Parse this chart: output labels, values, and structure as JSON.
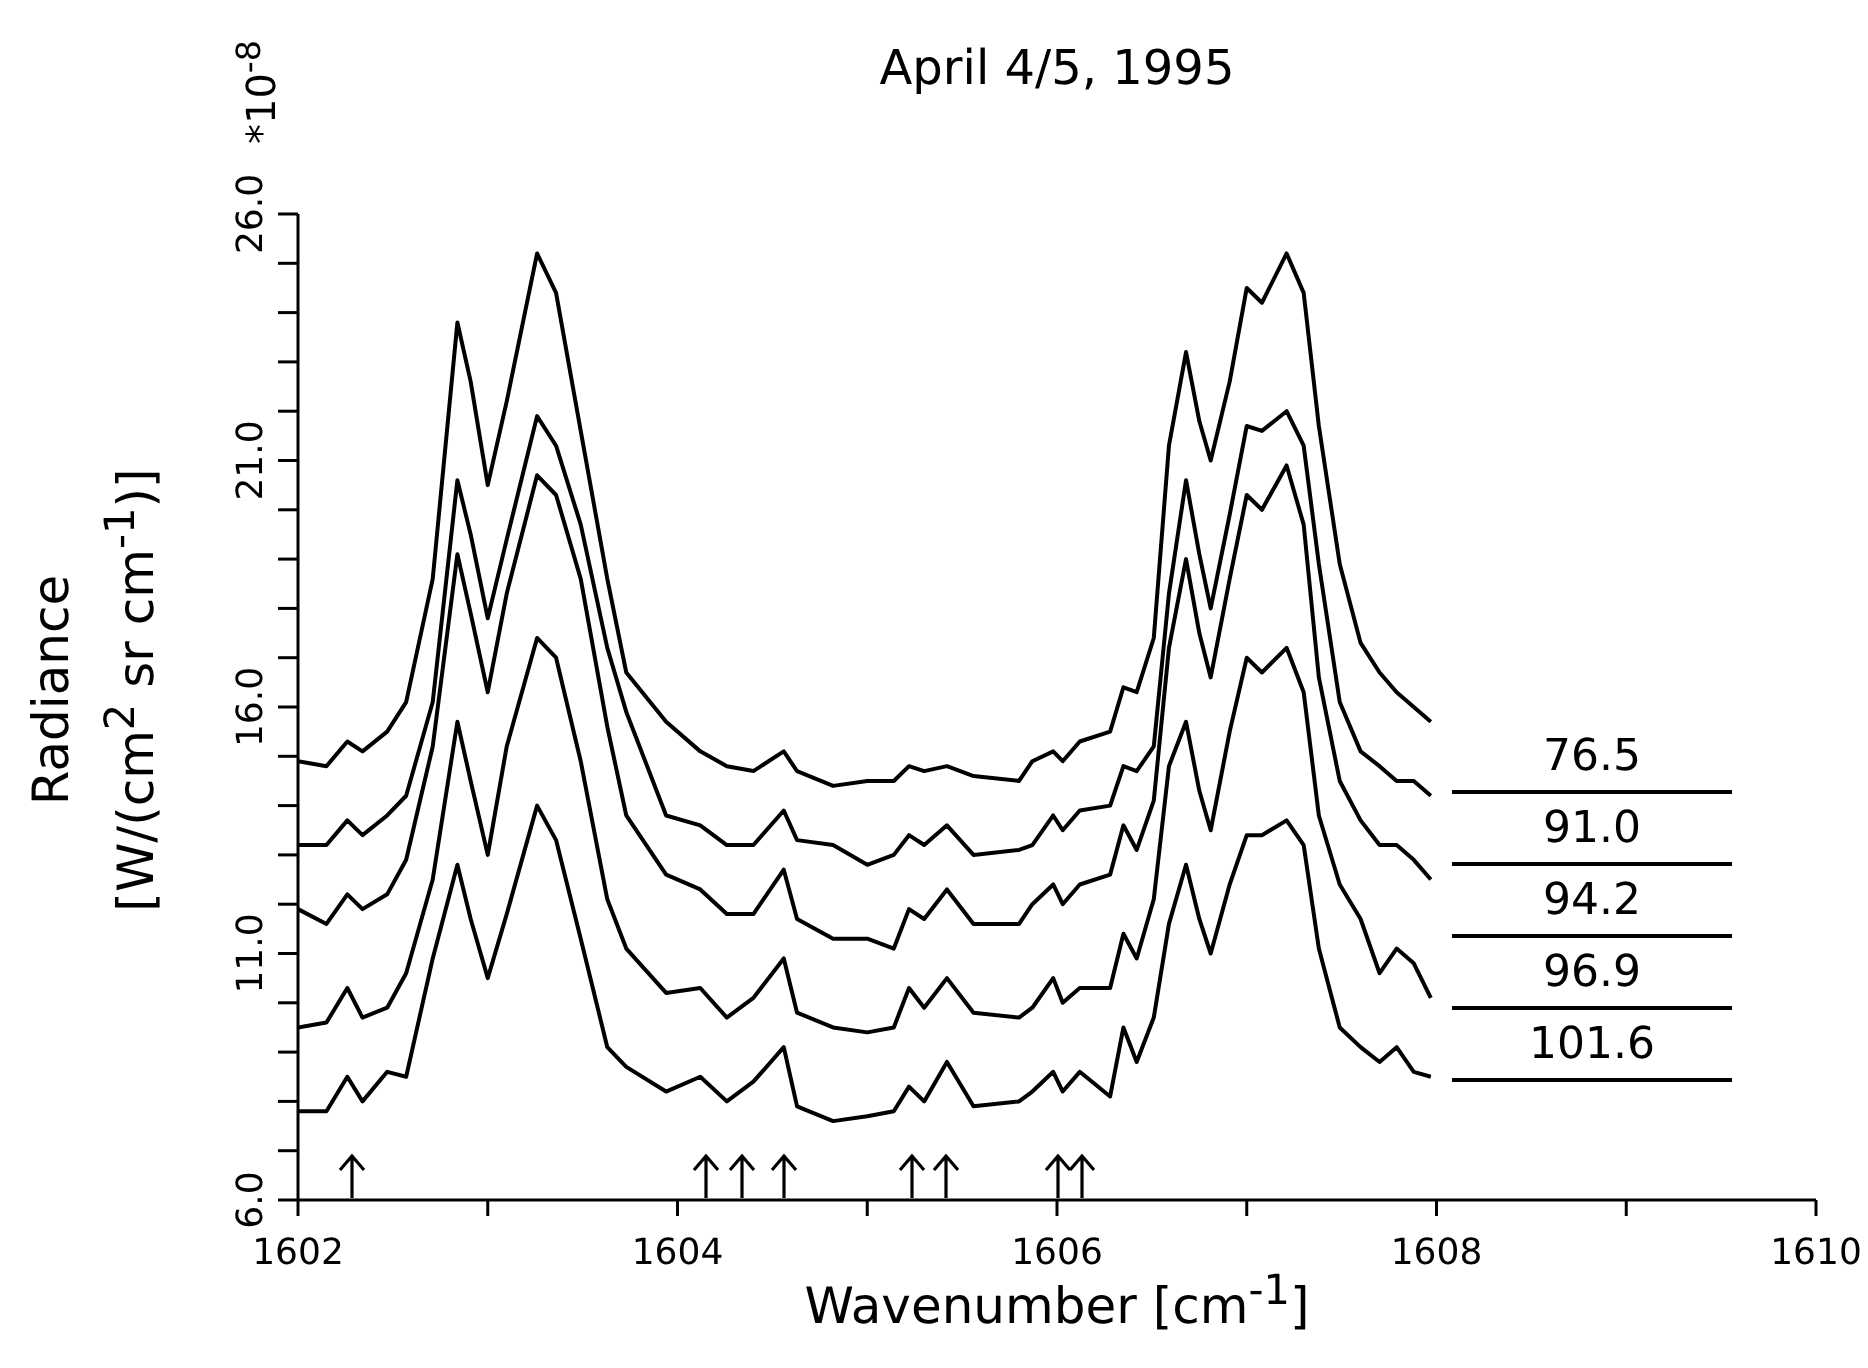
{
  "chart_data": {
    "type": "line",
    "title": "April 4/5, 1995",
    "xlabel": "Wavenumber [cm$^{-1}$]",
    "ylabel": "Radiance [W/(cm$^{2}$ sr cm$^{-1}$)]",
    "annotations": [
      "*10$^{-8}$"
    ],
    "x": [
      1602.0,
      1602.15,
      1602.26,
      1602.34,
      1602.47,
      1602.57,
      1602.71,
      1602.84,
      1602.91,
      1603.0,
      1603.1,
      1603.26,
      1603.36,
      1603.49,
      1603.63,
      1603.73,
      1603.94,
      1604.12,
      1604.26,
      1604.4,
      1604.56,
      1604.63,
      1604.82,
      1605.0,
      1605.14,
      1605.22,
      1605.3,
      1605.42,
      1605.56,
      1605.8,
      1605.87,
      1605.98,
      1606.03,
      1606.12,
      1606.28,
      1606.35,
      1606.42,
      1606.51,
      1606.59,
      1606.68,
      1606.75,
      1606.81,
      1606.91,
      1607.0,
      1607.08,
      1607.21,
      1607.3,
      1607.38,
      1607.49,
      1607.6,
      1607.7,
      1607.79,
      1607.88,
      1607.97
    ],
    "series": [
      {
        "name": "76.5",
        "color": "#000000",
        "values": [
          14.9,
          14.8,
          15.3,
          15.1,
          15.5,
          16.1,
          18.6,
          23.8,
          22.6,
          20.5,
          22.2,
          25.2,
          24.4,
          21.6,
          18.6,
          16.7,
          15.7,
          15.1,
          14.8,
          14.7,
          15.1,
          14.7,
          14.4,
          14.5,
          14.5,
          14.8,
          14.7,
          14.8,
          14.6,
          14.5,
          14.9,
          15.1,
          14.9,
          15.3,
          15.5,
          16.4,
          16.3,
          17.4,
          21.3,
          23.2,
          21.8,
          21.0,
          22.6,
          24.5,
          24.2,
          25.2,
          24.4,
          21.7,
          18.9,
          17.3,
          16.7,
          16.3,
          16.0,
          15.7
        ]
      },
      {
        "name": "91.0",
        "color": "#000000",
        "values": [
          13.2,
          13.2,
          13.7,
          13.4,
          13.8,
          14.2,
          16.1,
          20.6,
          19.5,
          17.8,
          19.4,
          21.9,
          21.3,
          19.7,
          17.2,
          15.9,
          13.8,
          13.6,
          13.2,
          13.2,
          13.9,
          13.3,
          13.2,
          12.8,
          13.0,
          13.4,
          13.2,
          13.6,
          13.0,
          13.1,
          13.2,
          13.8,
          13.5,
          13.9,
          14.0,
          14.8,
          14.7,
          15.2,
          18.3,
          20.6,
          19.1,
          18.0,
          19.9,
          21.7,
          21.6,
          22.0,
          21.3,
          18.9,
          16.1,
          15.1,
          14.8,
          14.5,
          14.5,
          14.2
        ]
      },
      {
        "name": "94.2",
        "color": "#000000",
        "values": [
          11.9,
          11.6,
          12.2,
          11.9,
          12.2,
          12.9,
          15.2,
          19.1,
          17.9,
          16.3,
          18.3,
          20.7,
          20.3,
          18.6,
          15.6,
          13.8,
          12.6,
          12.3,
          11.8,
          11.8,
          12.7,
          11.7,
          11.3,
          11.3,
          11.1,
          11.9,
          11.7,
          12.3,
          11.6,
          11.6,
          12.0,
          12.4,
          12.0,
          12.4,
          12.6,
          13.6,
          13.1,
          14.1,
          17.2,
          19.0,
          17.5,
          16.6,
          18.6,
          20.3,
          20.0,
          20.9,
          19.7,
          16.6,
          14.5,
          13.7,
          13.2,
          13.2,
          12.9,
          12.5
        ]
      },
      {
        "name": "96.9",
        "color": "#000000",
        "values": [
          9.5,
          9.6,
          10.3,
          9.7,
          9.9,
          10.6,
          12.5,
          15.7,
          14.5,
          13.0,
          15.2,
          17.4,
          17.0,
          14.9,
          12.1,
          11.1,
          10.2,
          10.3,
          9.7,
          10.1,
          10.9,
          9.8,
          9.5,
          9.4,
          9.5,
          10.3,
          9.9,
          10.5,
          9.8,
          9.7,
          9.9,
          10.5,
          10.0,
          10.3,
          10.3,
          11.4,
          10.9,
          12.1,
          14.8,
          15.7,
          14.3,
          13.5,
          15.5,
          17.0,
          16.7,
          17.2,
          16.3,
          13.8,
          12.4,
          11.7,
          10.6,
          11.1,
          10.8,
          10.1
        ]
      },
      {
        "name": "101.6",
        "color": "#000000",
        "values": [
          7.8,
          7.8,
          8.5,
          8.0,
          8.6,
          8.5,
          10.9,
          12.8,
          11.7,
          10.5,
          11.8,
          14.0,
          13.3,
          11.3,
          9.1,
          8.7,
          8.2,
          8.5,
          8.0,
          8.4,
          9.1,
          7.9,
          7.6,
          7.7,
          7.8,
          8.3,
          8.0,
          8.8,
          7.9,
          8.0,
          8.2,
          8.6,
          8.2,
          8.6,
          8.1,
          9.5,
          8.8,
          9.7,
          11.6,
          12.8,
          11.7,
          11.0,
          12.4,
          13.4,
          13.4,
          13.7,
          13.2,
          11.1,
          9.5,
          9.1,
          8.8,
          9.1,
          8.6,
          8.5
        ]
      }
    ],
    "xlim": [
      1602,
      1610
    ],
    "xticks": [
      1602,
      {
        "value": 1603,
        "label": null
      },
      1604,
      {
        "value": 1605,
        "label": null
      },
      1606,
      {
        "value": 1607,
        "label": null
      },
      1608,
      {
        "value": 1609,
        "label": null
      },
      1610
    ],
    "ylim": [
      6,
      26
    ],
    "yticks": [
      {
        "value": 6,
        "label": "6.0"
      },
      {
        "value": 7,
        "label": null
      },
      {
        "value": 8,
        "label": null
      },
      {
        "value": 9,
        "label": null
      },
      {
        "value": 10,
        "label": null
      },
      {
        "value": 11,
        "label": "11.0"
      },
      {
        "value": 12,
        "label": null
      },
      {
        "value": 13,
        "label": null
      },
      {
        "value": 14,
        "label": null
      },
      {
        "value": 15,
        "label": null
      },
      {
        "value": 16,
        "label": "16.0"
      },
      {
        "value": 17,
        "label": null
      },
      {
        "value": 18,
        "label": null
      },
      {
        "value": 19,
        "label": null
      },
      {
        "value": 20,
        "label": null
      },
      {
        "value": 21,
        "label": "21.0"
      },
      {
        "value": 22,
        "label": null
      },
      {
        "value": 23,
        "label": null
      },
      {
        "value": 24,
        "label": null
      },
      {
        "value": 25,
        "label": null
      },
      {
        "value": 26,
        "label": "26.0"
      }
    ],
    "legend": "right"
  }
}
